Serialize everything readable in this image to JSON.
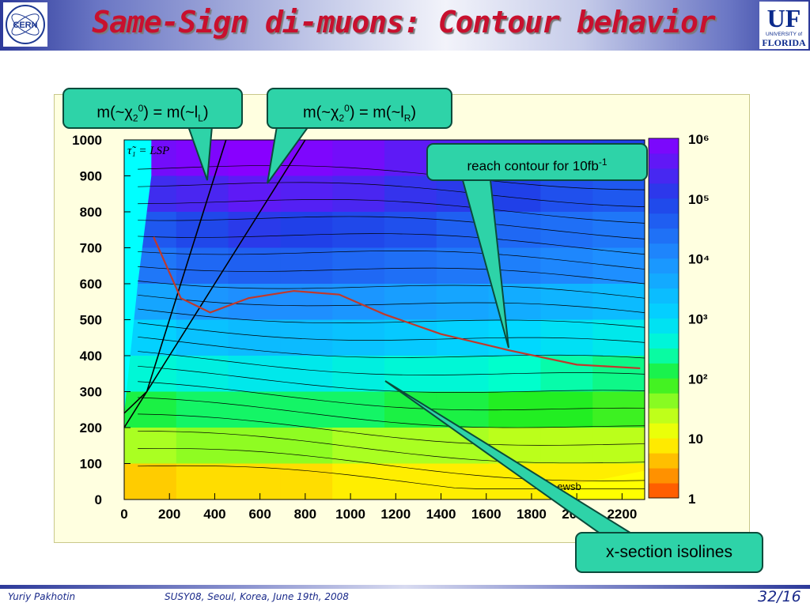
{
  "slide": {
    "title": "Same-Sign di-muons: Contour behavior",
    "footer_author": "Yuriy Pakhotin",
    "footer_event": "SUSY08, Seoul, Korea, June 19th, 2008",
    "page": "32/16"
  },
  "logos": {
    "left": "CERN",
    "right_main": "UF",
    "right_sub1": "UNIVERSITY of",
    "right_sub2": "FLORIDA"
  },
  "callouts": {
    "left": {
      "pre": "m(~χ",
      "sub1": "2",
      "sup1": "0",
      "mid": ") = m(~l",
      "sub2": "L",
      "post": ")"
    },
    "right": {
      "pre": "m(~χ",
      "sub1": "2",
      "sup1": "0",
      "mid": ") = m(~l",
      "sub2": "R",
      "post": ")"
    },
    "reach": {
      "pre": "reach contour for 10fb",
      "sup": "-1"
    },
    "isolines": "x-section isolines"
  },
  "colors": {
    "title": "#c8102e",
    "callout": "#2ed3a8",
    "reach_contour": "#c0392b",
    "plot_bg": "#ffffe0"
  },
  "chart_data": {
    "type": "heatmap",
    "x": {
      "ticks": [
        0,
        200,
        400,
        600,
        800,
        1000,
        1200,
        1400,
        1600,
        1800,
        2000,
        2200
      ],
      "tick_labels": [
        "0",
        "200",
        "400",
        "600",
        "800",
        "1000",
        "1200",
        "1400",
        "1600",
        "1800",
        "2000",
        "2200"
      ],
      "range": [
        0,
        2300
      ]
    },
    "y": {
      "ticks": [
        0,
        100,
        200,
        300,
        400,
        500,
        600,
        700,
        800,
        900,
        1000
      ],
      "tick_labels": [
        "0",
        "100",
        "200",
        "300",
        "400",
        "500",
        "600",
        "700",
        "800",
        "900",
        "1000"
      ],
      "range": [
        0,
        1000
      ]
    },
    "z": {
      "scale": "log",
      "range": [
        1,
        1000000
      ],
      "colorbar_labels": [
        "1",
        "10",
        "10²",
        "10³",
        "10⁴",
        "10⁵",
        "10⁶"
      ]
    },
    "annotations": [
      "τ̃₁ = LSP",
      "no ewsb"
    ],
    "reach_contour": [
      [
        130,
        730
      ],
      [
        250,
        560
      ],
      [
        380,
        520
      ],
      [
        550,
        560
      ],
      [
        750,
        580
      ],
      [
        950,
        570
      ],
      [
        1150,
        515
      ],
      [
        1400,
        460
      ],
      [
        1700,
        415
      ],
      [
        2000,
        375
      ],
      [
        2280,
        365
      ]
    ],
    "chi_slep_L_line": [
      [
        0,
        240
      ],
      [
        100,
        300
      ],
      [
        200,
        500
      ],
      [
        300,
        700
      ],
      [
        400,
        900
      ],
      [
        450,
        1000
      ]
    ],
    "chi_slep_R_line": [
      [
        0,
        200
      ],
      [
        200,
        400
      ],
      [
        300,
        500
      ],
      [
        450,
        650
      ],
      [
        600,
        800
      ],
      [
        800,
        1000
      ]
    ],
    "row_colors": [
      {
        "y": [
          900,
          1000
        ],
        "levels": [
          5.8,
          5.9,
          6.0,
          5.9,
          5.8,
          5.6,
          5.5,
          5.4,
          5.2,
          5.0
        ]
      },
      {
        "y": [
          800,
          900
        ],
        "levels": [
          5.3,
          5.4,
          5.6,
          5.5,
          5.4,
          5.2,
          5.1,
          5.0,
          4.8,
          4.7
        ]
      },
      {
        "y": [
          700,
          800
        ],
        "levels": [
          4.7,
          4.9,
          5.1,
          5.0,
          4.9,
          4.8,
          4.6,
          4.5,
          4.4,
          4.3
        ]
      },
      {
        "y": [
          600,
          700
        ],
        "levels": [
          4.3,
          4.5,
          4.6,
          4.6,
          4.5,
          4.4,
          4.3,
          4.2,
          4.1,
          4.0
        ]
      },
      {
        "y": [
          500,
          600
        ],
        "levels": [
          3.7,
          3.9,
          4.0,
          4.0,
          3.9,
          3.8,
          3.7,
          3.6,
          3.5,
          3.4
        ]
      },
      {
        "y": [
          400,
          500
        ],
        "levels": [
          3.1,
          3.3,
          3.4,
          3.4,
          3.3,
          3.2,
          3.1,
          3.0,
          2.9,
          2.8
        ]
      },
      {
        "y": [
          300,
          400
        ],
        "levels": [
          2.6,
          2.7,
          2.8,
          2.8,
          2.7,
          2.6,
          2.6,
          2.5,
          2.4,
          2.3
        ]
      },
      {
        "y": [
          200,
          300
        ],
        "levels": [
          2.1,
          2.2,
          2.2,
          2.2,
          2.2,
          2.1,
          2.1,
          2.0,
          2.0,
          1.9
        ]
      },
      {
        "y": [
          100,
          200
        ],
        "levels": [
          1.5,
          1.6,
          1.6,
          1.6,
          1.5,
          1.5,
          1.5,
          1.4,
          1.4,
          1.4
        ]
      },
      {
        "y": [
          0,
          100
        ],
        "levels": [
          0.7,
          0.8,
          0.8,
          0.8,
          0.9,
          0.9,
          0.9,
          0.9,
          0.9,
          0.9
        ]
      }
    ]
  }
}
